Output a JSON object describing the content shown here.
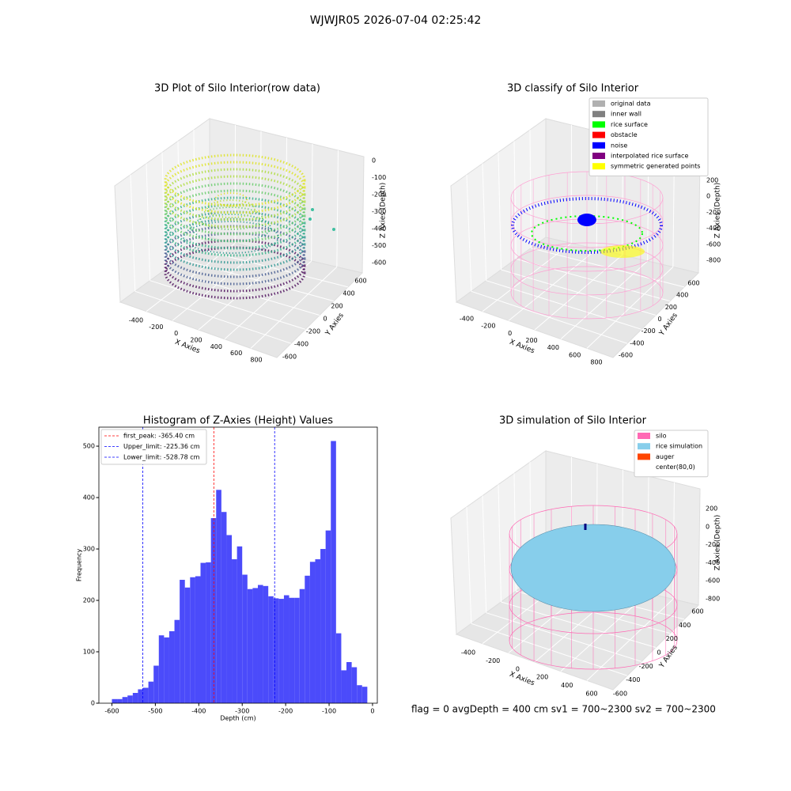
{
  "title": "WJWJR05 2026-07-04 02:25:42",
  "footer": "flag = 0     avgDepth = 400 cm  sv1 = 700~2300  sv2 = 700~2300",
  "chart_data": [
    {
      "type": "scatter3d",
      "title": "3D Plot of Silo Interior(row data)",
      "xlabel": "X Axies",
      "ylabel": "Y Axies",
      "zlabel": "Z Axies (Depth)",
      "xticks": [
        -400,
        -200,
        0,
        200,
        400,
        600,
        800
      ],
      "yticks": [
        -600,
        -400,
        -200,
        0,
        200,
        400,
        600
      ],
      "zticks": [
        -600,
        -500,
        -400,
        -300,
        -200,
        -100,
        0
      ]
    },
    {
      "type": "scatter3d",
      "title": "3D classify of Silo Interior",
      "xlabel": "X Axies",
      "ylabel": "Y Axies",
      "zlabel": "Z Axies (Depth)",
      "xticks": [
        -400,
        -200,
        0,
        200,
        400,
        600,
        800
      ],
      "yticks": [
        -600,
        -400,
        -200,
        0,
        200,
        400,
        600
      ],
      "zticks": [
        -800,
        -600,
        -400,
        -200,
        0,
        200
      ],
      "legend": [
        {
          "name": "original data",
          "color": "#b0b0b0"
        },
        {
          "name": "inner wall",
          "color": "#808080"
        },
        {
          "name": "rice surface",
          "color": "#00ff00"
        },
        {
          "name": "obstacle",
          "color": "#ff0000"
        },
        {
          "name": "noise",
          "color": "#0000ff"
        },
        {
          "name": "interpolated rice surface",
          "color": "#800080"
        },
        {
          "name": "symmetric generated points",
          "color": "#ffff00"
        }
      ]
    },
    {
      "type": "histogram",
      "title": "Histogram of Z-Axies (Height) Values",
      "xlabel": "Depth (cm)",
      "ylabel": "Frequency",
      "color": "#4b4bfa",
      "bins": [
        -600,
        -588,
        -576,
        -564,
        -552,
        -540,
        -528,
        -516,
        -504,
        -492,
        -480,
        -468,
        -456,
        -444,
        -432,
        -420,
        -408,
        -396,
        -384,
        -372,
        -360,
        -348,
        -336,
        -324,
        -312,
        -300,
        -288,
        -276,
        -264,
        -252,
        -240,
        -228,
        -216,
        -204,
        -192,
        -180,
        -168,
        -156,
        -144,
        -132,
        -120,
        -108,
        -96,
        -84,
        -72,
        -60,
        -48,
        -36,
        -24,
        -12
      ],
      "counts": [
        8,
        8,
        12,
        15,
        20,
        27,
        30,
        42,
        73,
        132,
        128,
        140,
        162,
        240,
        225,
        245,
        247,
        273,
        274,
        360,
        415,
        372,
        327,
        280,
        305,
        250,
        222,
        224,
        230,
        228,
        208,
        204,
        203,
        210,
        205,
        205,
        222,
        248,
        275,
        280,
        300,
        336,
        510,
        136,
        64,
        80,
        70,
        35,
        32
      ],
      "xlim": [
        -630,
        11
      ],
      "ylim": [
        0,
        537
      ],
      "xticks": [
        -600,
        -500,
        -400,
        -300,
        -200,
        -100,
        0
      ],
      "yticks": [
        0,
        100,
        200,
        300,
        400,
        500
      ],
      "lines": [
        {
          "label": "first_peak: -365.40 cm",
          "value": -365.4,
          "color": "#ff0000"
        },
        {
          "label": "Upper_limit: -225.36 cm",
          "value": -225.36,
          "color": "#0000ff"
        },
        {
          "label": "Lower_limit: -528.78 cm",
          "value": -528.78,
          "color": "#0000ff"
        }
      ]
    },
    {
      "type": "surface3d",
      "title": "3D simulation of Silo Interior",
      "xlabel": "X Axies",
      "ylabel": "Y Axies",
      "zlabel": "Z Axies (Depth)",
      "xticks": [
        -400,
        -200,
        0,
        200,
        400,
        600
      ],
      "yticks": [
        -600,
        -400,
        -200,
        0,
        200,
        400,
        600
      ],
      "zticks": [
        -800,
        -600,
        -400,
        -200,
        0,
        200
      ],
      "legend": [
        {
          "name": "silo",
          "color": "#ff69b4"
        },
        {
          "name": "rice simulation",
          "color": "#87ceeb"
        },
        {
          "name": "auger",
          "color": "#ff4500"
        },
        {
          "name": "center(80,0)",
          "color": "#ffffff"
        }
      ]
    }
  ]
}
